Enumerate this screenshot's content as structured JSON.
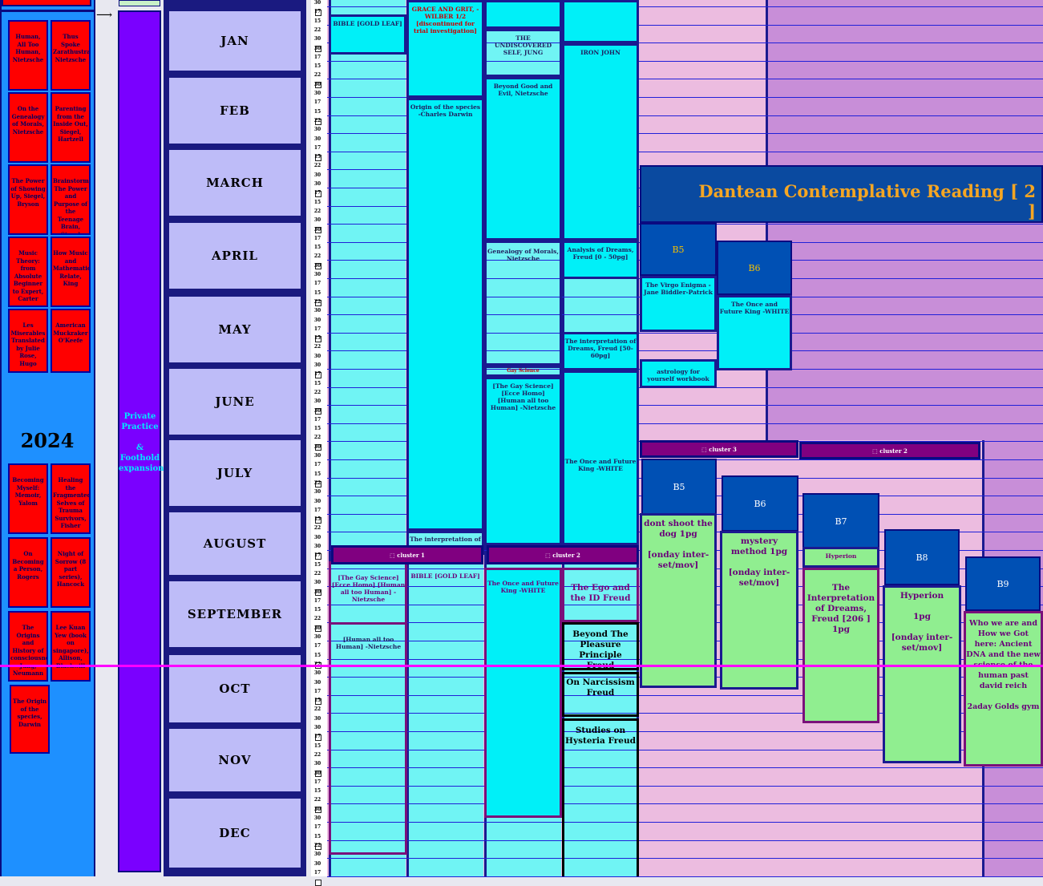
{
  "year": "2024",
  "practice_label": "Private Practice\n\n& Foothold expansion",
  "months": [
    "JAN",
    "FEB",
    "MARCH",
    "APRIL",
    "MAY",
    "JUNE",
    "JULY",
    "AUGUST",
    "SEPTEMBER",
    "OCT",
    "NOV",
    "DEC"
  ],
  "week_ticks": [
    "30",
    "17",
    "15",
    "22",
    "30"
  ],
  "left_books": [
    "Human, All Too Human, Nietzsche",
    "Thus Spoke Zarathustra Nietzsche",
    "On the Genealogy of Morals, Nietzsche",
    "Parenting from the Inside Out, Siegel, Hartzell",
    "The Power of Showing Up, Siegel, Bryson",
    "Brainstorm The Power and Purpose of the Teenage Brain, Siegel",
    "Music Theory: from Absolute Beginner to Expert, Carter",
    "How Music and Mathematics Relate, King",
    "Les Miserables Translated by Julie Rose, Hugo",
    "American Muckraker O'Keefe",
    "Becoming Myself: Memoir, Yalom",
    "Healing the Fragmented Selves of Trauma Survivors, Fisher",
    "On Becoming a Person, Rogers",
    "Night of Sorrow (8 part series), Hancock",
    "The Origins and History of consciousness Jung, Neumann",
    "Lee Kuan Yew (book on singapore), Allison, Blackwill",
    "The Origin of the species, Darwin"
  ],
  "banner": "Dantean Contemplative Reading [ 2 ]",
  "col1": {
    "bible": "BIBLE [GOLD LEAF]",
    "gay_science": "[The Gay Science] [Ecce Homo] [Human all too Human] -Nietzsche",
    "human_all": "[Human all too Human] -Nietzsche"
  },
  "col2": {
    "grace": "GRACE AND GRIT, -WILBER 1/2 [discontinued for trial investigation]",
    "origin": "Origin of the species -Charles Darwin",
    "interp": "The interpretation of",
    "bible": "BIBLE [GOLD LEAF]"
  },
  "col3": {
    "undiscovered": "THE UNDISCOVERED SELF, JUNG",
    "beyond": "Beyond Good and Evil, Nietzsche",
    "genealogy": "Genealogy of Morals, Nietzsche",
    "gay_small": "[The Gay Science] [Ecce Homo] [Human all too Human] -Nietzsche",
    "gay_tiny": "Gay Science",
    "once": "The Once and Future King -WHITE"
  },
  "col4": {
    "iron": "IRON JOHN",
    "analysis": "Analysis of Dreams, Freud [0 - 50pg]",
    "interp": "The interpretation of Dreams, Freud [50-60pg]",
    "once": "The Once and Future King -WHITE",
    "ego": "The Ego and the ID Freud",
    "beyond": "Beyond The Pleasure Principle Freud",
    "narcissism": "On Narcissism Freud",
    "hysteria": "Studies on Hysteria Freud"
  },
  "b_blocks": {
    "b5a": "B5",
    "b6a": "B6",
    "virgo": "The Virgo Enigma -Jane Biddler-Patrick",
    "once_b6": "The Once and Future King -WHITE",
    "astrology": "astrology for yourself workbook",
    "b5": "B5",
    "b6": "B6",
    "b7": "B7",
    "b8": "B8",
    "b9": "B9",
    "dont_shoot": "dont shoot the dog 1pg\n\n[onday inter-set/mov]",
    "mystery": "mystery method 1pg\n\n[onday inter-set/mov]",
    "hyperion_small": "Hyperion",
    "interpretation": "The Interpretation of Dreams, Freud [206 ] 1pg",
    "hyperion": "Hyperion\n\n1pg\n\n[onday inter-set/mov]",
    "who_we_are": "Who we are and How we Got here: Ancient DNA and the new science of the human past david reich\n\n2aday Golds gym"
  },
  "clusters": [
    "cluster 1",
    "cluster 2",
    "cluster 3",
    "cluster 2"
  ],
  "colors": {
    "cyan": "#00f0f8",
    "blue_panel": "#1e90ff",
    "purple": "#7a00ff",
    "month_bg": "#bebcf8",
    "pink": "#ecbce0",
    "lilac": "#c88ed8",
    "banner": "#0a4aa0",
    "banner_text": "#f5a623",
    "magenta": "#ff00ff"
  }
}
